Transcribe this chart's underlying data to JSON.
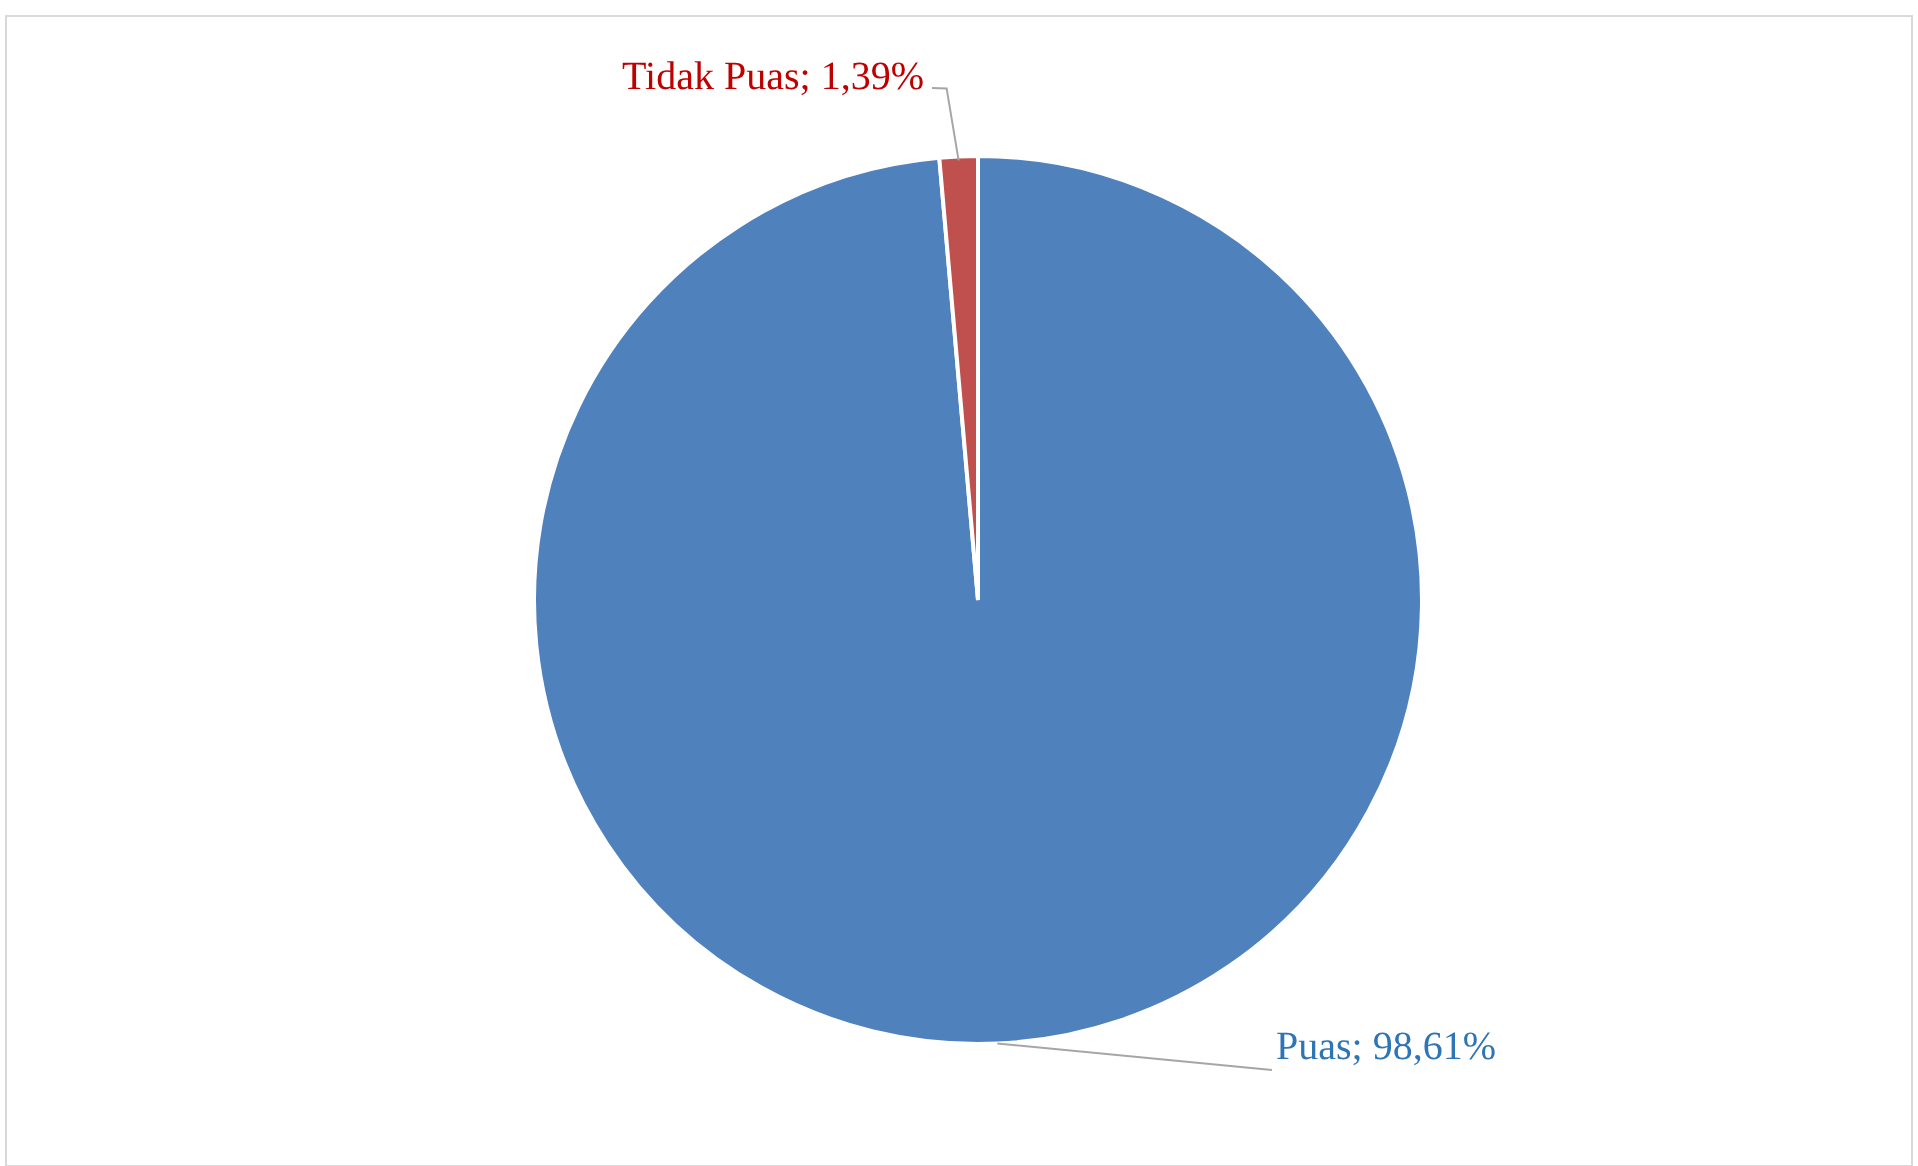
{
  "chart_data": {
    "type": "pie",
    "categories": [
      "Puas",
      "Tidak Puas"
    ],
    "values": [
      98.61,
      1.39
    ],
    "colors": [
      "#4f81bd",
      "#c0504d"
    ],
    "value_labels": [
      "98,61%",
      "1,39%"
    ]
  }
}
